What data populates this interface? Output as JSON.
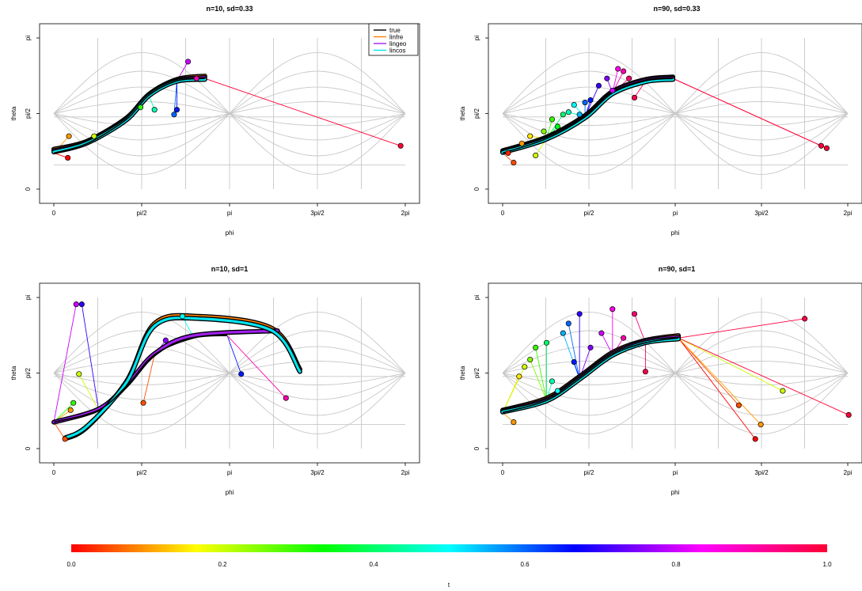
{
  "chart_data": {
    "type": "line",
    "x_tick_labels": [
      "0",
      "pi/2",
      "pi",
      "3pi/2",
      "2pi"
    ],
    "y_tick_labels": [
      "0",
      "pi/2",
      "pi"
    ],
    "xlabel": "phi",
    "ylabel": "theta",
    "grid": true,
    "legend": {
      "position": "top-right",
      "entries": [
        {
          "name": "true",
          "color": "#000000"
        },
        {
          "name": "linfre",
          "color": "#ff8000"
        },
        {
          "name": "lingeo",
          "color": "#a020f0"
        },
        {
          "name": "lincos",
          "color": "#00e5ee"
        }
      ]
    },
    "colorbar": {
      "label": "t",
      "ticks": [
        "0.0",
        "0.2",
        "0.4",
        "0.6",
        "0.8",
        "1.0"
      ],
      "colors": [
        "#ff0000",
        "#ffff00",
        "#00ff00",
        "#00ffff",
        "#0000ff",
        "#ff00ff",
        "#ff0000"
      ]
    },
    "panels": [
      {
        "title": "n=10, sd=0.33",
        "xlim": [
          0,
          6.2832
        ],
        "ylim": [
          0,
          3.1416
        ],
        "true_curve": [
          [
            0.0,
            0.75
          ],
          [
            0.6,
            0.95
          ],
          [
            1.3,
            1.45
          ],
          [
            1.7,
            1.95
          ],
          [
            2.2,
            2.25
          ],
          [
            2.7,
            2.3
          ]
        ],
        "fits": {
          "linfre": [
            [
              0.0,
              0.83
            ],
            [
              0.6,
              1.0
            ],
            [
              1.3,
              1.48
            ],
            [
              1.7,
              1.97
            ],
            [
              2.2,
              2.28
            ],
            [
              2.7,
              2.35
            ]
          ],
          "lingeo": [
            [
              0.0,
              0.8
            ],
            [
              0.6,
              0.98
            ],
            [
              1.3,
              1.46
            ],
            [
              1.7,
              1.96
            ],
            [
              2.2,
              2.26
            ],
            [
              2.7,
              2.32
            ]
          ],
          "lincos": [
            [
              0.0,
              0.77
            ],
            [
              0.6,
              0.96
            ],
            [
              1.3,
              1.44
            ],
            [
              1.7,
              1.94
            ],
            [
              2.2,
              2.24
            ],
            [
              2.7,
              2.28
            ]
          ]
        },
        "points": [
          [
            0.25,
            0.65,
            0.0
          ],
          [
            0.27,
            1.1,
            0.1
          ],
          [
            0.72,
            1.1,
            0.2
          ],
          [
            1.55,
            1.7,
            0.3
          ],
          [
            1.8,
            1.65,
            0.45
          ],
          [
            2.15,
            1.55,
            0.6
          ],
          [
            2.2,
            1.65,
            0.65
          ],
          [
            2.4,
            2.65,
            0.8
          ],
          [
            2.55,
            2.3,
            0.9
          ],
          [
            6.2,
            0.9,
            1.0
          ]
        ]
      },
      {
        "title": "n=90, sd=0.33",
        "xlim": [
          0,
          6.2832
        ],
        "ylim": [
          0,
          3.1416
        ],
        "true_curve": [
          [
            0.0,
            0.75
          ],
          [
            0.8,
            1.05
          ],
          [
            1.5,
            1.5
          ],
          [
            2.0,
            2.0
          ],
          [
            2.6,
            2.25
          ],
          [
            3.1,
            2.3
          ]
        ],
        "fits": {
          "linfre": [
            [
              0.0,
              0.8
            ],
            [
              0.8,
              1.08
            ],
            [
              1.5,
              1.53
            ],
            [
              2.0,
              2.03
            ],
            [
              2.6,
              2.28
            ],
            [
              3.1,
              2.33
            ]
          ],
          "lingeo": [
            [
              0.0,
              0.78
            ],
            [
              0.8,
              1.06
            ],
            [
              1.5,
              1.51
            ],
            [
              2.0,
              2.01
            ],
            [
              2.6,
              2.26
            ],
            [
              3.1,
              2.31
            ]
          ],
          "lincos": [
            [
              0.0,
              0.76
            ],
            [
              0.8,
              1.04
            ],
            [
              1.5,
              1.48
            ],
            [
              2.0,
              1.98
            ],
            [
              2.6,
              2.23
            ],
            [
              3.1,
              2.28
            ]
          ]
        },
        "points": [
          [
            0.1,
            0.75,
            0.02
          ],
          [
            0.2,
            0.55,
            0.05
          ],
          [
            0.35,
            0.95,
            0.1
          ],
          [
            0.5,
            1.1,
            0.15
          ],
          [
            0.6,
            0.7,
            0.2
          ],
          [
            0.75,
            1.2,
            0.25
          ],
          [
            0.9,
            1.45,
            0.3
          ],
          [
            1.0,
            1.3,
            0.35
          ],
          [
            1.1,
            1.55,
            0.4
          ],
          [
            1.2,
            1.6,
            0.45
          ],
          [
            1.3,
            1.75,
            0.5
          ],
          [
            1.4,
            1.55,
            0.55
          ],
          [
            1.5,
            1.8,
            0.6
          ],
          [
            1.6,
            1.85,
            0.65
          ],
          [
            1.75,
            2.15,
            0.7
          ],
          [
            1.9,
            2.3,
            0.75
          ],
          [
            2.0,
            2.05,
            0.8
          ],
          [
            2.1,
            2.5,
            0.85
          ],
          [
            2.2,
            2.45,
            0.9
          ],
          [
            2.3,
            2.3,
            0.95
          ],
          [
            2.4,
            1.9,
            0.98
          ],
          [
            5.8,
            0.9,
            0.99
          ],
          [
            5.9,
            0.85,
            1.0
          ]
        ]
      },
      {
        "title": "n=10, sd=1",
        "xlim": [
          0,
          6.2832
        ],
        "ylim": [
          0,
          3.1416
        ],
        "true_curve": [
          [
            0.0,
            0.55
          ],
          [
            0.8,
            0.8
          ],
          [
            1.3,
            1.3
          ],
          [
            1.8,
            1.95
          ],
          [
            2.5,
            2.3
          ],
          [
            3.1,
            2.35
          ]
        ],
        "fits": {
          "linfre": [
            [
              0.2,
              0.2
            ],
            [
              0.6,
              0.45
            ],
            [
              1.3,
              1.4
            ],
            [
              1.8,
              2.6
            ],
            [
              2.6,
              2.75
            ],
            [
              3.9,
              2.5
            ],
            [
              4.4,
              1.65
            ]
          ],
          "lingeo": [
            [
              0.0,
              0.55
            ],
            [
              0.8,
              0.82
            ],
            [
              1.3,
              1.32
            ],
            [
              1.8,
              1.97
            ],
            [
              2.5,
              2.35
            ],
            [
              4.0,
              2.45
            ]
          ],
          "lincos": [
            [
              0.2,
              0.22
            ],
            [
              0.6,
              0.47
            ],
            [
              1.3,
              1.38
            ],
            [
              1.8,
              2.55
            ],
            [
              2.6,
              2.7
            ],
            [
              3.9,
              2.45
            ],
            [
              4.4,
              1.6
            ]
          ]
        },
        "points": [
          [
            0.2,
            0.2,
            0.05
          ],
          [
            0.3,
            0.8,
            0.1
          ],
          [
            0.45,
            1.55,
            0.2
          ],
          [
            0.35,
            0.95,
            0.3
          ],
          [
            1.6,
            0.95,
            0.05
          ],
          [
            2.0,
            2.25,
            0.75
          ],
          [
            2.3,
            2.75,
            0.5
          ],
          [
            3.35,
            1.55,
            0.65
          ],
          [
            4.15,
            1.05,
            0.9
          ],
          [
            0.4,
            3.0,
            0.8
          ],
          [
            0.5,
            3.0,
            0.7
          ]
        ]
      },
      {
        "title": "n=90, sd=1",
        "xlim": [
          0,
          6.2832
        ],
        "ylim": [
          0,
          3.1416
        ],
        "true_curve": [
          [
            0.0,
            0.75
          ],
          [
            0.8,
            1.0
          ],
          [
            1.4,
            1.45
          ],
          [
            2.0,
            1.95
          ],
          [
            2.6,
            2.2
          ],
          [
            3.2,
            2.3
          ]
        ],
        "fits": {
          "linfre": [
            [
              0.0,
              0.8
            ],
            [
              0.8,
              1.05
            ],
            [
              1.4,
              1.5
            ],
            [
              2.0,
              2.0
            ],
            [
              2.6,
              2.25
            ],
            [
              3.2,
              2.35
            ]
          ],
          "lingeo": [
            [
              0.0,
              0.78
            ],
            [
              0.8,
              1.02
            ],
            [
              1.4,
              1.47
            ],
            [
              2.0,
              1.97
            ],
            [
              2.6,
              2.23
            ],
            [
              3.2,
              2.32
            ]
          ],
          "lincos": [
            [
              0.0,
              0.76
            ],
            [
              0.8,
              0.99
            ],
            [
              1.4,
              1.44
            ],
            [
              2.0,
              1.94
            ],
            [
              2.6,
              2.2
            ],
            [
              3.2,
              2.28
            ]
          ]
        },
        "points": [
          [
            0.2,
            0.55,
            0.1
          ],
          [
            0.3,
            1.5,
            0.15
          ],
          [
            0.4,
            1.7,
            0.2
          ],
          [
            0.5,
            1.85,
            0.25
          ],
          [
            0.6,
            2.1,
            0.3
          ],
          [
            0.8,
            2.2,
            0.4
          ],
          [
            0.9,
            1.4,
            0.45
          ],
          [
            1.0,
            1.2,
            0.5
          ],
          [
            1.1,
            2.4,
            0.55
          ],
          [
            1.2,
            2.6,
            0.6
          ],
          [
            1.3,
            1.8,
            0.65
          ],
          [
            1.4,
            2.8,
            0.7
          ],
          [
            1.6,
            2.1,
            0.75
          ],
          [
            1.8,
            2.4,
            0.8
          ],
          [
            2.0,
            2.9,
            0.85
          ],
          [
            2.2,
            2.3,
            0.9
          ],
          [
            2.4,
            2.8,
            0.95
          ],
          [
            2.6,
            1.6,
            0.98
          ],
          [
            4.3,
            0.9,
            0.05
          ],
          [
            4.6,
            0.2,
            0.0
          ],
          [
            4.7,
            0.5,
            0.1
          ],
          [
            5.1,
            1.2,
            0.2
          ],
          [
            5.5,
            2.7,
            0.99
          ],
          [
            6.3,
            0.7,
            1.0
          ]
        ]
      }
    ]
  }
}
